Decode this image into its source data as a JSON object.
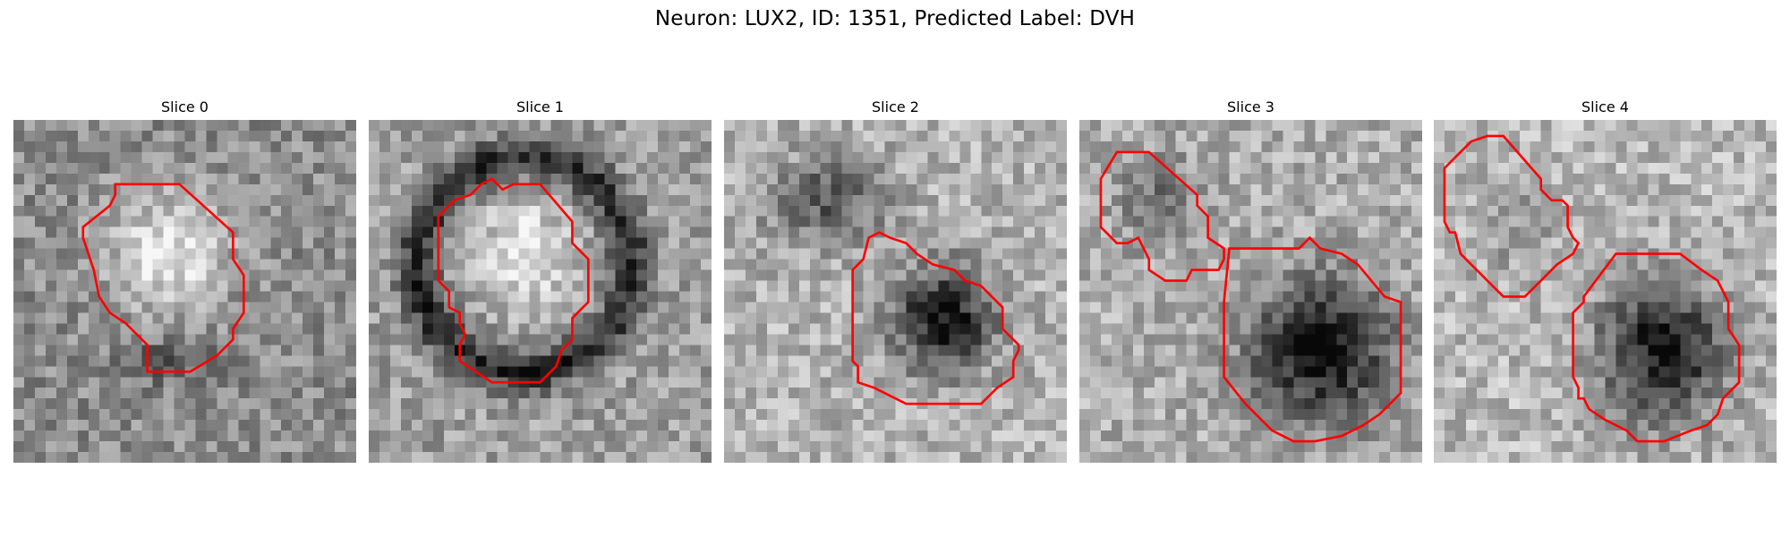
{
  "title": "Neuron: LUX2, ID: 1351, Predicted Label: DVH",
  "slices": [
    {
      "label": "Slice 0",
      "pattern": "bright-cell"
    },
    {
      "label": "Slice 1",
      "pattern": "bright-cell-dark-ring"
    },
    {
      "label": "Slice 2",
      "pattern": "dark-cell"
    },
    {
      "label": "Slice 3",
      "pattern": "two-cells-dark"
    },
    {
      "label": "Slice 4",
      "pattern": "two-cells-dark"
    }
  ],
  "contour_color": "#ff0000",
  "colormap": "grayscale"
}
